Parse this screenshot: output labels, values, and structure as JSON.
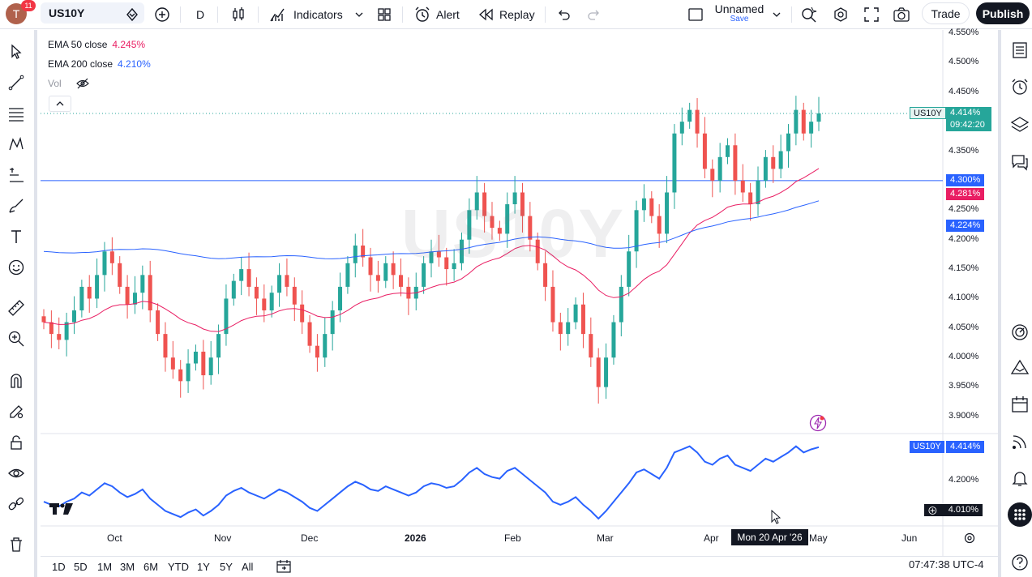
{
  "topbar": {
    "avatar_letter": "T",
    "notification_count": "11",
    "symbol": "US10Y",
    "interval": "D",
    "indicators_label": "Indicators",
    "alert_label": "Alert",
    "replay_label": "Replay",
    "layout_name": "Unnamed",
    "layout_save": "Save",
    "trade_label": "Trade",
    "publish_label": "Publish"
  },
  "legend": {
    "ema50_label": "EMA 50 close",
    "ema50_value": "4.245%",
    "ema200_label": "EMA 200 close",
    "ema200_value": "4.210%",
    "vol_label": "Vol",
    "ema50_color": "#e91e63",
    "ema200_color": "#2962ff"
  },
  "watermark": "US10Y",
  "price_axis": {
    "labels": [
      "4.550%",
      "4.500%",
      "4.450%",
      "4.350%",
      "4.250%",
      "4.200%",
      "4.150%",
      "4.100%",
      "4.050%",
      "4.000%",
      "3.950%",
      "3.900%"
    ]
  },
  "tags": {
    "symbol_tag": "US10Y",
    "last_price": "4.414%",
    "countdown": "09:42:20",
    "hline_price": "4.300%",
    "ema50_price": "4.281%",
    "ema200_price": "4.224%",
    "lower_symbol": "US10Y",
    "lower_price": "4.414%",
    "lower_axis_label": "4.200%",
    "crosshair_price": "4.010%"
  },
  "time_axis": {
    "labels": [
      "Oct",
      "Nov",
      "Dec",
      "2026",
      "Feb",
      "Mar",
      "Apr",
      "May",
      "Jun"
    ],
    "crosshair_date": "Mon 20 Apr '26"
  },
  "bottombar": {
    "ranges": [
      "1D",
      "5D",
      "1M",
      "3M",
      "6M",
      "YTD",
      "1Y",
      "5Y",
      "All"
    ],
    "clock": "07:47:38 UTC-4"
  },
  "logo_text": "TV",
  "chart_data": {
    "type": "candlestick",
    "ylim": [
      3.9,
      4.55
    ],
    "up_color": "#26a69a",
    "down_color": "#ef5350",
    "closes_approx": [
      4.06,
      4.04,
      4.03,
      4.06,
      4.08,
      4.12,
      4.1,
      4.14,
      4.18,
      4.16,
      4.12,
      4.09,
      4.11,
      4.14,
      4.08,
      4.04,
      4.0,
      3.98,
      3.96,
      3.99,
      4.01,
      3.97,
      4.0,
      4.04,
      4.1,
      4.13,
      4.15,
      4.12,
      4.1,
      4.08,
      4.11,
      4.14,
      4.12,
      4.09,
      4.06,
      4.02,
      4.0,
      4.04,
      4.08,
      4.12,
      4.16,
      4.19,
      4.17,
      4.14,
      4.13,
      4.16,
      4.14,
      4.12,
      4.1,
      4.12,
      4.16,
      4.18,
      4.17,
      4.15,
      4.16,
      4.2,
      4.25,
      4.28,
      4.24,
      4.22,
      4.21,
      4.26,
      4.28,
      4.24,
      4.2,
      4.16,
      4.12,
      4.06,
      4.04,
      4.06,
      4.09,
      4.04,
      4.0,
      3.95,
      4.0,
      4.06,
      4.12,
      4.18,
      4.25,
      4.27,
      4.24,
      4.21,
      4.28,
      4.38,
      4.4,
      4.42,
      4.38,
      4.32,
      4.3,
      4.34,
      4.36,
      4.3,
      4.28,
      4.26,
      4.3,
      4.34,
      4.32,
      4.35,
      4.38,
      4.42,
      4.38,
      4.4,
      4.414
    ],
    "lines": [
      {
        "name": "EMA 50 close",
        "color": "#e91e63"
      },
      {
        "name": "EMA 200 close",
        "color": "#2962ff"
      }
    ],
    "horizontal_line": 4.3
  }
}
